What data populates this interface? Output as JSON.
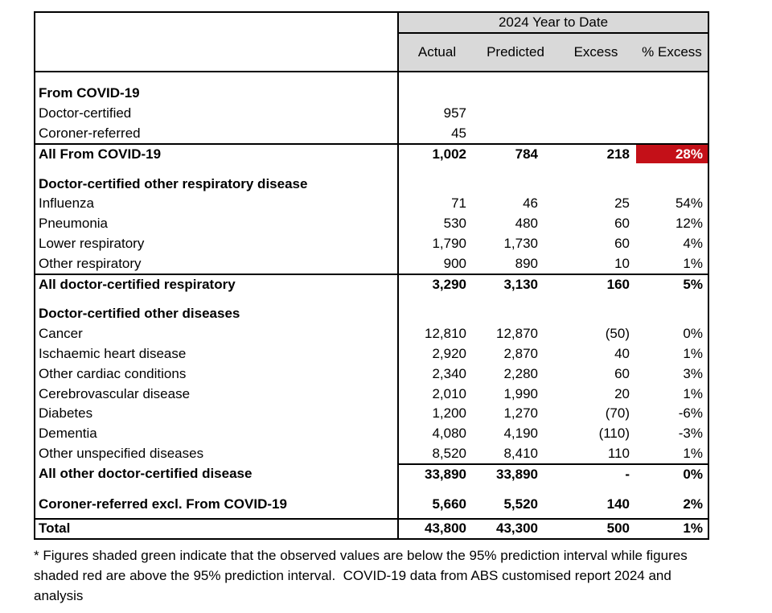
{
  "page": {
    "background": "#ffffff"
  },
  "table": {
    "group_header": "2024 Year to Date",
    "columns": [
      "Actual",
      "Predicted",
      "Excess",
      "% Excess"
    ],
    "colors": {
      "header_bg": "#d9d9d9",
      "highlight_red": "#c41018",
      "border": "#000000"
    },
    "rows": [
      {
        "type": "spacer",
        "h": 14
      },
      {
        "label": "From COVID-19",
        "bold": true,
        "values": [
          "",
          "",
          "",
          ""
        ]
      },
      {
        "label": "Doctor-certified",
        "values": [
          "957",
          "",
          "",
          ""
        ]
      },
      {
        "label": "Coroner-referred",
        "values": [
          "45",
          "",
          "",
          ""
        ]
      },
      {
        "label": "All From COVID-19",
        "bold": true,
        "values": [
          "1,002",
          "784",
          "218",
          "28%"
        ],
        "border_top": "full",
        "highlight_col": 3
      },
      {
        "type": "spacer",
        "h": 13
      },
      {
        "label": "Doctor-certified other respiratory disease",
        "bold": true,
        "values": [
          "",
          "",
          "",
          ""
        ]
      },
      {
        "label": "Influenza",
        "values": [
          "71",
          "46",
          "25",
          "54%"
        ]
      },
      {
        "label": "Pneumonia",
        "values": [
          "530",
          "480",
          "60",
          "12%"
        ]
      },
      {
        "label": "Lower respiratory",
        "values": [
          "1,790",
          "1,730",
          "60",
          "4%"
        ]
      },
      {
        "label": "Other respiratory",
        "values": [
          "900",
          "890",
          "10",
          "1%"
        ]
      },
      {
        "label": "All doctor-certified respiratory",
        "bold": true,
        "values": [
          "3,290",
          "3,130",
          "160",
          "5%"
        ],
        "border_top": "full"
      },
      {
        "type": "spacer",
        "h": 13
      },
      {
        "label": "Doctor-certified other diseases",
        "bold": true,
        "values": [
          "",
          "",
          "",
          ""
        ]
      },
      {
        "label": "Cancer",
        "values": [
          "12,810",
          "12,870",
          "(50)",
          "0%"
        ]
      },
      {
        "label": "Ischaemic heart disease",
        "values": [
          "2,920",
          "2,870",
          "40",
          "1%"
        ]
      },
      {
        "label": "Other cardiac conditions",
        "values": [
          "2,340",
          "2,280",
          "60",
          "3%"
        ]
      },
      {
        "label": "Cerebrovascular disease",
        "values": [
          "2,010",
          "1,990",
          "20",
          "1%"
        ]
      },
      {
        "label": "Diabetes",
        "values": [
          "1,200",
          "1,270",
          "(70)",
          "-6%"
        ]
      },
      {
        "label": "Dementia",
        "values": [
          "4,080",
          "4,190",
          "(110)",
          "-3%"
        ]
      },
      {
        "label": "Other unspecified diseases",
        "values": [
          "8,520",
          "8,410",
          "110",
          "1%"
        ]
      },
      {
        "label": "All other doctor-certified disease",
        "bold": true,
        "values": [
          "33,890",
          "33,890",
          "-",
          "0%"
        ],
        "border_top": "values"
      },
      {
        "type": "spacer",
        "h": 13
      },
      {
        "label": "Coroner-referred excl. From COVID-19",
        "bold": true,
        "values": [
          "5,660",
          "5,520",
          "140",
          "2%"
        ]
      },
      {
        "type": "spacer",
        "h": 5
      },
      {
        "label": "Total",
        "bold": true,
        "values": [
          "43,800",
          "43,300",
          "500",
          "1%"
        ],
        "border_top": "full"
      }
    ]
  },
  "footnote": "* Figures shaded green indicate that the observed values are below the 95% prediction interval while figures shaded red are above the 95% prediction interval.  COVID-19 data from ABS customised report 2024 and analysis",
  "chart_data": {
    "type": "table",
    "title": "2024 Year to Date",
    "columns": [
      "Actual",
      "Predicted",
      "Excess",
      "% Excess"
    ],
    "rows": [
      {
        "category": "From COVID-19 / Doctor-certified",
        "actual": 957,
        "predicted": null,
        "excess": null,
        "pct_excess": null
      },
      {
        "category": "From COVID-19 / Coroner-referred",
        "actual": 45,
        "predicted": null,
        "excess": null,
        "pct_excess": null
      },
      {
        "category": "All From COVID-19",
        "actual": 1002,
        "predicted": 784,
        "excess": 218,
        "pct_excess": 28,
        "shading": "red"
      },
      {
        "category": "Influenza",
        "actual": 71,
        "predicted": 46,
        "excess": 25,
        "pct_excess": 54
      },
      {
        "category": "Pneumonia",
        "actual": 530,
        "predicted": 480,
        "excess": 60,
        "pct_excess": 12
      },
      {
        "category": "Lower respiratory",
        "actual": 1790,
        "predicted": 1730,
        "excess": 60,
        "pct_excess": 4
      },
      {
        "category": "Other respiratory",
        "actual": 900,
        "predicted": 890,
        "excess": 10,
        "pct_excess": 1
      },
      {
        "category": "All doctor-certified respiratory",
        "actual": 3290,
        "predicted": 3130,
        "excess": 160,
        "pct_excess": 5
      },
      {
        "category": "Cancer",
        "actual": 12810,
        "predicted": 12870,
        "excess": -50,
        "pct_excess": 0
      },
      {
        "category": "Ischaemic heart disease",
        "actual": 2920,
        "predicted": 2870,
        "excess": 40,
        "pct_excess": 1
      },
      {
        "category": "Other cardiac conditions",
        "actual": 2340,
        "predicted": 2280,
        "excess": 60,
        "pct_excess": 3
      },
      {
        "category": "Cerebrovascular disease",
        "actual": 2010,
        "predicted": 1990,
        "excess": 20,
        "pct_excess": 1
      },
      {
        "category": "Diabetes",
        "actual": 1200,
        "predicted": 1270,
        "excess": -70,
        "pct_excess": -6
      },
      {
        "category": "Dementia",
        "actual": 4080,
        "predicted": 4190,
        "excess": -110,
        "pct_excess": -3
      },
      {
        "category": "Other unspecified diseases",
        "actual": 8520,
        "predicted": 8410,
        "excess": 110,
        "pct_excess": 1
      },
      {
        "category": "All other doctor-certified disease",
        "actual": 33890,
        "predicted": 33890,
        "excess": 0,
        "pct_excess": 0
      },
      {
        "category": "Coroner-referred excl. From COVID-19",
        "actual": 5660,
        "predicted": 5520,
        "excess": 140,
        "pct_excess": 2
      },
      {
        "category": "Total",
        "actual": 43800,
        "predicted": 43300,
        "excess": 500,
        "pct_excess": 1
      }
    ]
  }
}
